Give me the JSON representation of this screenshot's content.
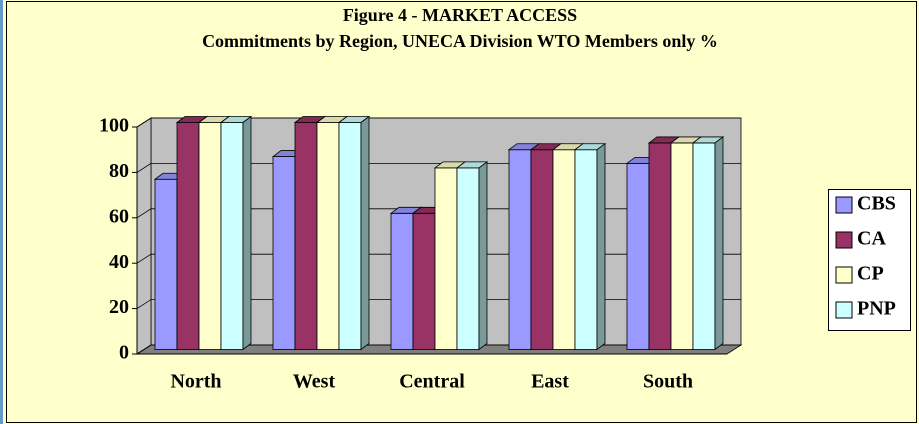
{
  "chart_data": {
    "type": "bar3d",
    "title": "Figure 4 - MARKET ACCESS",
    "subtitle": "Commitments by Region, UNECA Division WTO Members only %",
    "categories": [
      "North",
      "West",
      "Central",
      "East",
      "South"
    ],
    "series": [
      {
        "name": "CBS",
        "color": "#9999ff",
        "values": [
          75,
          85,
          60,
          88,
          82
        ]
      },
      {
        "name": "CA",
        "color": "#993366",
        "values": [
          100,
          100,
          60,
          88,
          91
        ]
      },
      {
        "name": "CP",
        "color": "#ffffcc",
        "values": [
          100,
          100,
          80,
          88,
          91
        ]
      },
      {
        "name": "PNP",
        "color": "#ccffff",
        "values": [
          100,
          100,
          80,
          88,
          91
        ]
      }
    ],
    "ylim": [
      0,
      100
    ],
    "yticks": [
      0,
      20,
      40,
      60,
      80,
      100
    ],
    "grid": true,
    "legend": "right"
  }
}
